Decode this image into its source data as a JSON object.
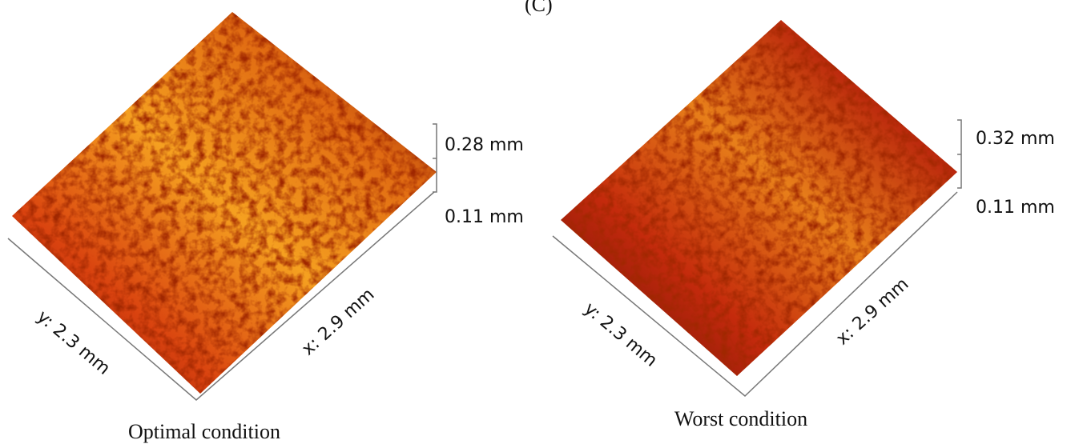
{
  "header": {
    "label": "(C)"
  },
  "panels": [
    {
      "z_top": "0.28 mm",
      "z_bottom": "0.11 mm",
      "y_axis": "y: 2.3 mm",
      "x_axis": "x: 2.9 mm",
      "caption": "Optimal condition"
    },
    {
      "z_top": "0.32 mm",
      "z_bottom": "0.11 mm",
      "y_axis": "y: 2.3 mm",
      "x_axis": "x: 2.9 mm",
      "caption": "Worst condition"
    }
  ]
}
